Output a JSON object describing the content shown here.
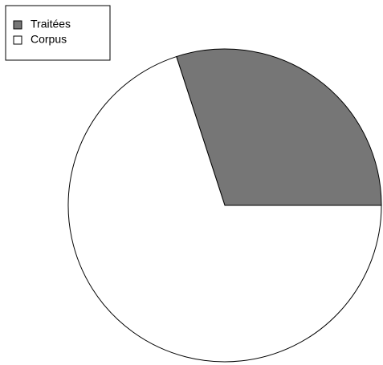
{
  "chart_data": {
    "type": "pie",
    "categories": [
      "Traitées",
      "Corpus"
    ],
    "values": [
      30,
      70
    ],
    "colors": [
      "#767676",
      "#ffffff"
    ],
    "legend": "top-left"
  }
}
